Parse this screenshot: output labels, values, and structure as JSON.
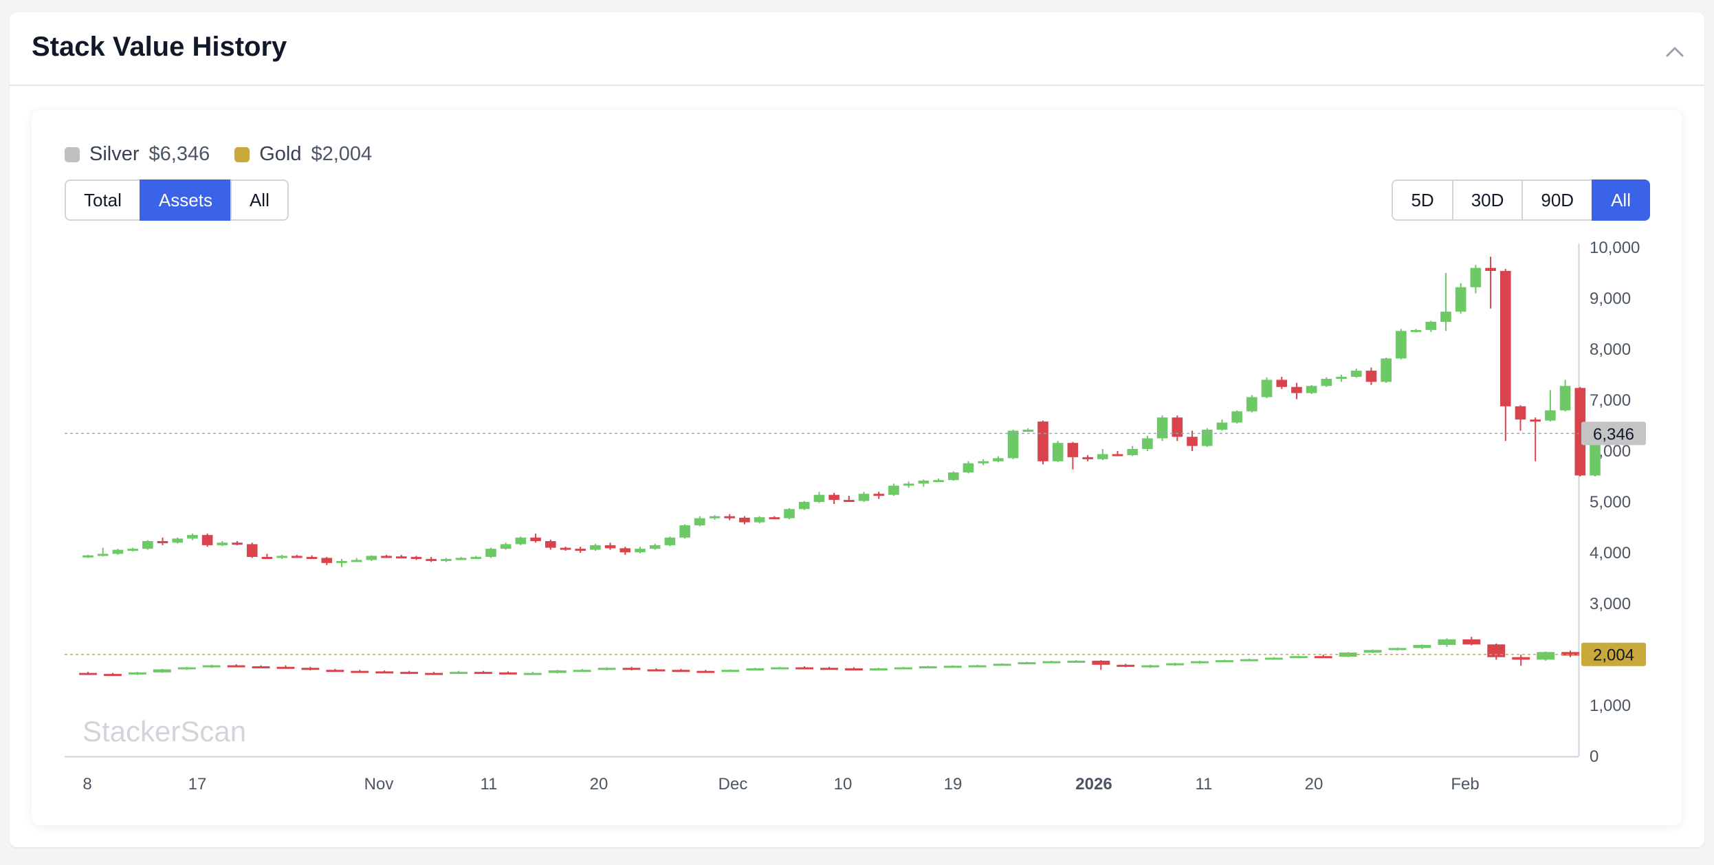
{
  "header": {
    "title": "Stack Value History",
    "collapse_icon": "chevron-up-icon"
  },
  "legend": [
    {
      "name": "Silver",
      "value": "$6,346",
      "color": "#c0c0c0"
    },
    {
      "name": "Gold",
      "value": "$2,004",
      "color": "#c9a83c"
    }
  ],
  "view_buttons": [
    {
      "label": "Total",
      "active": false
    },
    {
      "label": "Assets",
      "active": true
    },
    {
      "label": "All",
      "active": false
    }
  ],
  "range_buttons": [
    {
      "label": "5D",
      "active": false
    },
    {
      "label": "30D",
      "active": false
    },
    {
      "label": "90D",
      "active": false
    },
    {
      "label": "All",
      "active": true
    }
  ],
  "watermark": "StackerScan",
  "colors": {
    "up": "#6cc965",
    "down": "#d9434b",
    "accent": "#3b63e8"
  },
  "chart_data": {
    "type": "candlestick",
    "x_ticks": [
      "8",
      "17",
      "Nov",
      "11",
      "20",
      "Dec",
      "10",
      "19",
      "2026",
      "11",
      "20",
      "Feb"
    ],
    "y_ticks": [
      "0",
      "1,000",
      "2,000",
      "3,000",
      "4,000",
      "5,000",
      "6,000",
      "7,000",
      "8,000",
      "9,000",
      "10,000"
    ],
    "ylim": [
      0,
      10000
    ],
    "grid": false,
    "series": [
      {
        "name": "Silver",
        "last_price_label": "6,346",
        "last_price": 6346,
        "last_price_color": "#c4c4c4",
        "ohlc": [
          [
            3920,
            3960,
            3900,
            3950
          ],
          [
            3950,
            4100,
            3930,
            3980
          ],
          [
            3980,
            4080,
            3960,
            4060
          ],
          [
            4060,
            4100,
            4030,
            4080
          ],
          [
            4080,
            4250,
            4060,
            4230
          ],
          [
            4230,
            4300,
            4150,
            4200
          ],
          [
            4200,
            4300,
            4180,
            4280
          ],
          [
            4280,
            4380,
            4250,
            4350
          ],
          [
            4350,
            4380,
            4120,
            4150
          ],
          [
            4150,
            4230,
            4130,
            4200
          ],
          [
            4200,
            4230,
            4150,
            4170
          ],
          [
            4170,
            4200,
            3900,
            3920
          ],
          [
            3920,
            3980,
            3880,
            3900
          ],
          [
            3900,
            3960,
            3880,
            3940
          ],
          [
            3940,
            3960,
            3900,
            3920
          ],
          [
            3920,
            3950,
            3880,
            3900
          ],
          [
            3900,
            3920,
            3760,
            3800
          ],
          [
            3800,
            3880,
            3720,
            3840
          ],
          [
            3840,
            3900,
            3820,
            3860
          ],
          [
            3860,
            3950,
            3840,
            3940
          ],
          [
            3940,
            3960,
            3920,
            3930
          ],
          [
            3930,
            3960,
            3900,
            3920
          ],
          [
            3920,
            3940,
            3860,
            3880
          ],
          [
            3880,
            3920,
            3820,
            3840
          ],
          [
            3840,
            3900,
            3820,
            3880
          ],
          [
            3880,
            3920,
            3870,
            3900
          ],
          [
            3900,
            3940,
            3880,
            3920
          ],
          [
            3920,
            4100,
            3900,
            4080
          ],
          [
            4080,
            4200,
            4060,
            4170
          ],
          [
            4170,
            4320,
            4150,
            4300
          ],
          [
            4300,
            4380,
            4200,
            4230
          ],
          [
            4230,
            4260,
            4060,
            4100
          ],
          [
            4100,
            4120,
            4040,
            4080
          ],
          [
            4080,
            4120,
            4000,
            4060
          ],
          [
            4060,
            4180,
            4040,
            4150
          ],
          [
            4150,
            4200,
            4060,
            4090
          ],
          [
            4090,
            4120,
            3960,
            4010
          ],
          [
            4010,
            4120,
            3990,
            4080
          ],
          [
            4080,
            4180,
            4060,
            4150
          ],
          [
            4150,
            4320,
            4130,
            4300
          ],
          [
            4300,
            4560,
            4280,
            4540
          ],
          [
            4540,
            4720,
            4520,
            4680
          ],
          [
            4680,
            4740,
            4650,
            4720
          ],
          [
            4720,
            4760,
            4640,
            4690
          ],
          [
            4690,
            4720,
            4560,
            4600
          ],
          [
            4600,
            4720,
            4580,
            4700
          ],
          [
            4700,
            4720,
            4660,
            4680
          ],
          [
            4680,
            4880,
            4660,
            4860
          ],
          [
            4860,
            5020,
            4840,
            5000
          ],
          [
            5000,
            5200,
            4980,
            5140
          ],
          [
            5140,
            5180,
            4960,
            5040
          ],
          [
            5040,
            5120,
            5000,
            5020
          ],
          [
            5020,
            5200,
            5000,
            5160
          ],
          [
            5160,
            5200,
            5060,
            5140
          ],
          [
            5140,
            5360,
            5120,
            5320
          ],
          [
            5320,
            5400,
            5280,
            5360
          ],
          [
            5360,
            5440,
            5300,
            5420
          ],
          [
            5420,
            5460,
            5400,
            5430
          ],
          [
            5430,
            5600,
            5420,
            5580
          ],
          [
            5580,
            5800,
            5560,
            5760
          ],
          [
            5760,
            5840,
            5720,
            5800
          ],
          [
            5800,
            5900,
            5780,
            5860
          ],
          [
            5860,
            6420,
            5840,
            6400
          ],
          [
            6400,
            6450,
            6380,
            6420
          ],
          [
            6580,
            6600,
            5740,
            5800
          ],
          [
            5800,
            6200,
            5780,
            6160
          ],
          [
            6160,
            6180,
            5640,
            5880
          ],
          [
            5880,
            5920,
            5800,
            5840
          ],
          [
            5840,
            6040,
            5820,
            5940
          ],
          [
            5940,
            6000,
            5900,
            5920
          ],
          [
            5920,
            6100,
            5900,
            6040
          ],
          [
            6040,
            6300,
            6000,
            6250
          ],
          [
            6250,
            6700,
            6200,
            6660
          ],
          [
            6660,
            6700,
            6200,
            6280
          ],
          [
            6280,
            6400,
            6000,
            6100
          ],
          [
            6100,
            6450,
            6080,
            6420
          ],
          [
            6420,
            6620,
            6400,
            6560
          ],
          [
            6560,
            6800,
            6540,
            6780
          ],
          [
            6780,
            7100,
            6760,
            7060
          ],
          [
            7060,
            7450,
            7040,
            7400
          ],
          [
            7400,
            7460,
            7220,
            7260
          ],
          [
            7260,
            7340,
            7020,
            7140
          ],
          [
            7140,
            7300,
            7120,
            7280
          ],
          [
            7280,
            7450,
            7260,
            7420
          ],
          [
            7420,
            7500,
            7360,
            7460
          ],
          [
            7460,
            7620,
            7440,
            7580
          ],
          [
            7580,
            7640,
            7300,
            7360
          ],
          [
            7360,
            7840,
            7340,
            7820
          ],
          [
            7820,
            8400,
            7800,
            8360
          ],
          [
            8360,
            8400,
            8330,
            8380
          ],
          [
            8380,
            8560,
            8340,
            8540
          ],
          [
            8540,
            9500,
            8360,
            8740
          ],
          [
            8740,
            9300,
            8700,
            9220
          ],
          [
            9220,
            9660,
            9100,
            9600
          ],
          [
            9600,
            9820,
            8800,
            9540
          ],
          [
            9540,
            9580,
            6200,
            6880
          ],
          [
            6880,
            6900,
            6400,
            6620
          ],
          [
            6620,
            6660,
            5800,
            6600
          ],
          [
            6600,
            7200,
            6580,
            6800
          ],
          [
            6800,
            7400,
            6780,
            7280
          ],
          [
            7240,
            7260,
            5500,
            5520
          ],
          [
            5520,
            6346,
            5500,
            6346
          ]
        ]
      },
      {
        "name": "Gold",
        "last_price_label": "2,004",
        "last_price": 2004,
        "last_price_color": "#c9a83c",
        "ohlc": [
          [
            1640,
            1660,
            1610,
            1620
          ],
          [
            1620,
            1640,
            1600,
            1610
          ],
          [
            1610,
            1660,
            1600,
            1650
          ],
          [
            1650,
            1720,
            1640,
            1710
          ],
          [
            1710,
            1760,
            1700,
            1750
          ],
          [
            1750,
            1800,
            1740,
            1790
          ],
          [
            1790,
            1810,
            1760,
            1770
          ],
          [
            1770,
            1790,
            1740,
            1760
          ],
          [
            1760,
            1790,
            1720,
            1740
          ],
          [
            1740,
            1760,
            1690,
            1700
          ],
          [
            1700,
            1720,
            1660,
            1680
          ],
          [
            1680,
            1700,
            1650,
            1670
          ],
          [
            1670,
            1690,
            1640,
            1660
          ],
          [
            1660,
            1680,
            1620,
            1640
          ],
          [
            1640,
            1660,
            1610,
            1630
          ],
          [
            1630,
            1680,
            1620,
            1660
          ],
          [
            1660,
            1680,
            1640,
            1650
          ],
          [
            1650,
            1670,
            1620,
            1630
          ],
          [
            1630,
            1660,
            1610,
            1640
          ],
          [
            1640,
            1700,
            1630,
            1690
          ],
          [
            1690,
            1720,
            1670,
            1700
          ],
          [
            1700,
            1750,
            1690,
            1740
          ],
          [
            1740,
            1760,
            1690,
            1710
          ],
          [
            1710,
            1730,
            1680,
            1700
          ],
          [
            1700,
            1720,
            1660,
            1680
          ],
          [
            1680,
            1700,
            1650,
            1670
          ],
          [
            1670,
            1710,
            1660,
            1700
          ],
          [
            1700,
            1740,
            1690,
            1730
          ],
          [
            1730,
            1760,
            1720,
            1750
          ],
          [
            1750,
            1770,
            1720,
            1740
          ],
          [
            1740,
            1760,
            1710,
            1730
          ],
          [
            1730,
            1750,
            1700,
            1720
          ],
          [
            1720,
            1740,
            1700,
            1730
          ],
          [
            1730,
            1760,
            1720,
            1750
          ],
          [
            1750,
            1780,
            1740,
            1770
          ],
          [
            1770,
            1790,
            1750,
            1780
          ],
          [
            1780,
            1800,
            1760,
            1790
          ],
          [
            1790,
            1830,
            1780,
            1820
          ],
          [
            1820,
            1860,
            1810,
            1850
          ],
          [
            1850,
            1880,
            1840,
            1870
          ],
          [
            1870,
            1890,
            1860,
            1880
          ],
          [
            1880,
            1890,
            1700,
            1800
          ],
          [
            1800,
            1820,
            1750,
            1760
          ],
          [
            1760,
            1800,
            1740,
            1790
          ],
          [
            1790,
            1840,
            1780,
            1830
          ],
          [
            1830,
            1880,
            1820,
            1870
          ],
          [
            1870,
            1900,
            1860,
            1890
          ],
          [
            1890,
            1920,
            1880,
            1910
          ],
          [
            1910,
            1950,
            1900,
            1940
          ],
          [
            1940,
            1980,
            1930,
            1970
          ],
          [
            1970,
            2000,
            1940,
            1960
          ],
          [
            1960,
            2050,
            1950,
            2040
          ],
          [
            2040,
            2100,
            2030,
            2090
          ],
          [
            2090,
            2140,
            2080,
            2130
          ],
          [
            2130,
            2200,
            2110,
            2190
          ],
          [
            2190,
            2320,
            2150,
            2300
          ],
          [
            2300,
            2350,
            2180,
            2200
          ],
          [
            2200,
            2220,
            1900,
            1950
          ],
          [
            1950,
            2000,
            1780,
            1900
          ],
          [
            1900,
            2060,
            1880,
            2050
          ],
          [
            2050,
            2080,
            1950,
            1980
          ],
          [
            1980,
            2010,
            1960,
            2004
          ]
        ]
      }
    ]
  }
}
